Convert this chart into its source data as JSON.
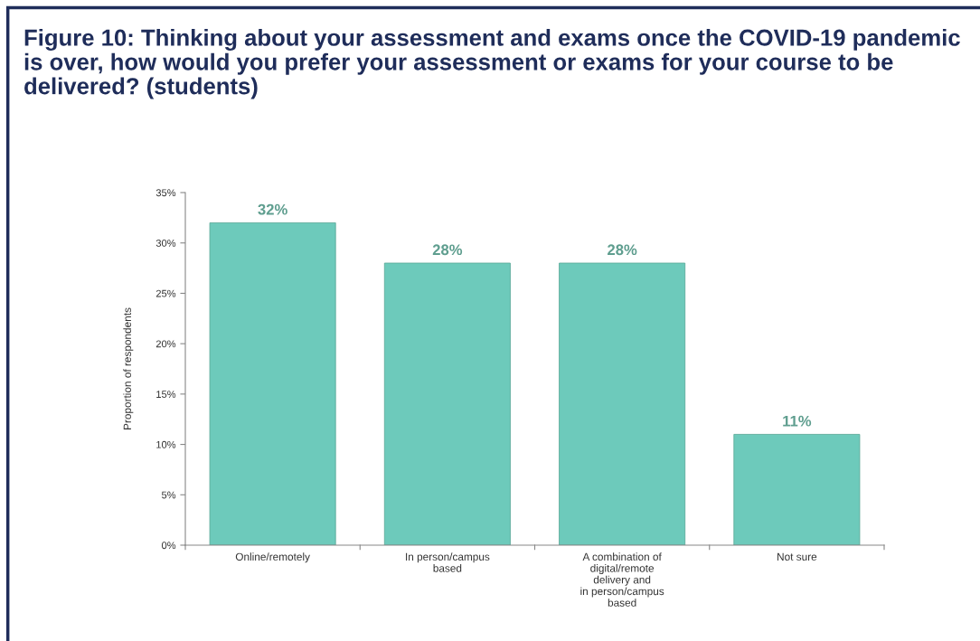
{
  "chart_data": {
    "type": "bar",
    "title": "Figure 10: Thinking about your assessment and exams once the COVID-19 pandemic is over, how would you prefer your assessment or exams for your course to be delivered? (students)",
    "ylabel": "Proportion of respondents",
    "categories": [
      "Online/remotely",
      "In person/campus\nbased",
      "A combination of\ndigital/remote\ndelivery and\nin person/campus\nbased",
      "Not sure"
    ],
    "values": [
      32,
      28,
      28,
      11
    ],
    "value_labels": [
      "32%",
      "28%",
      "28%",
      "11%"
    ],
    "color": "#6dcabb",
    "ylim": [
      0,
      35
    ],
    "yticks": [
      {
        "value": 0,
        "label": "0%"
      },
      {
        "value": 5,
        "label": "5%"
      },
      {
        "value": 10,
        "label": "10%"
      },
      {
        "value": 15,
        "label": "15%"
      },
      {
        "value": 20,
        "label": "20%"
      },
      {
        "value": 25,
        "label": "25%"
      },
      {
        "value": 30,
        "label": "30%"
      },
      {
        "value": 35,
        "label": "35%"
      }
    ],
    "grid": false,
    "legend": false
  }
}
